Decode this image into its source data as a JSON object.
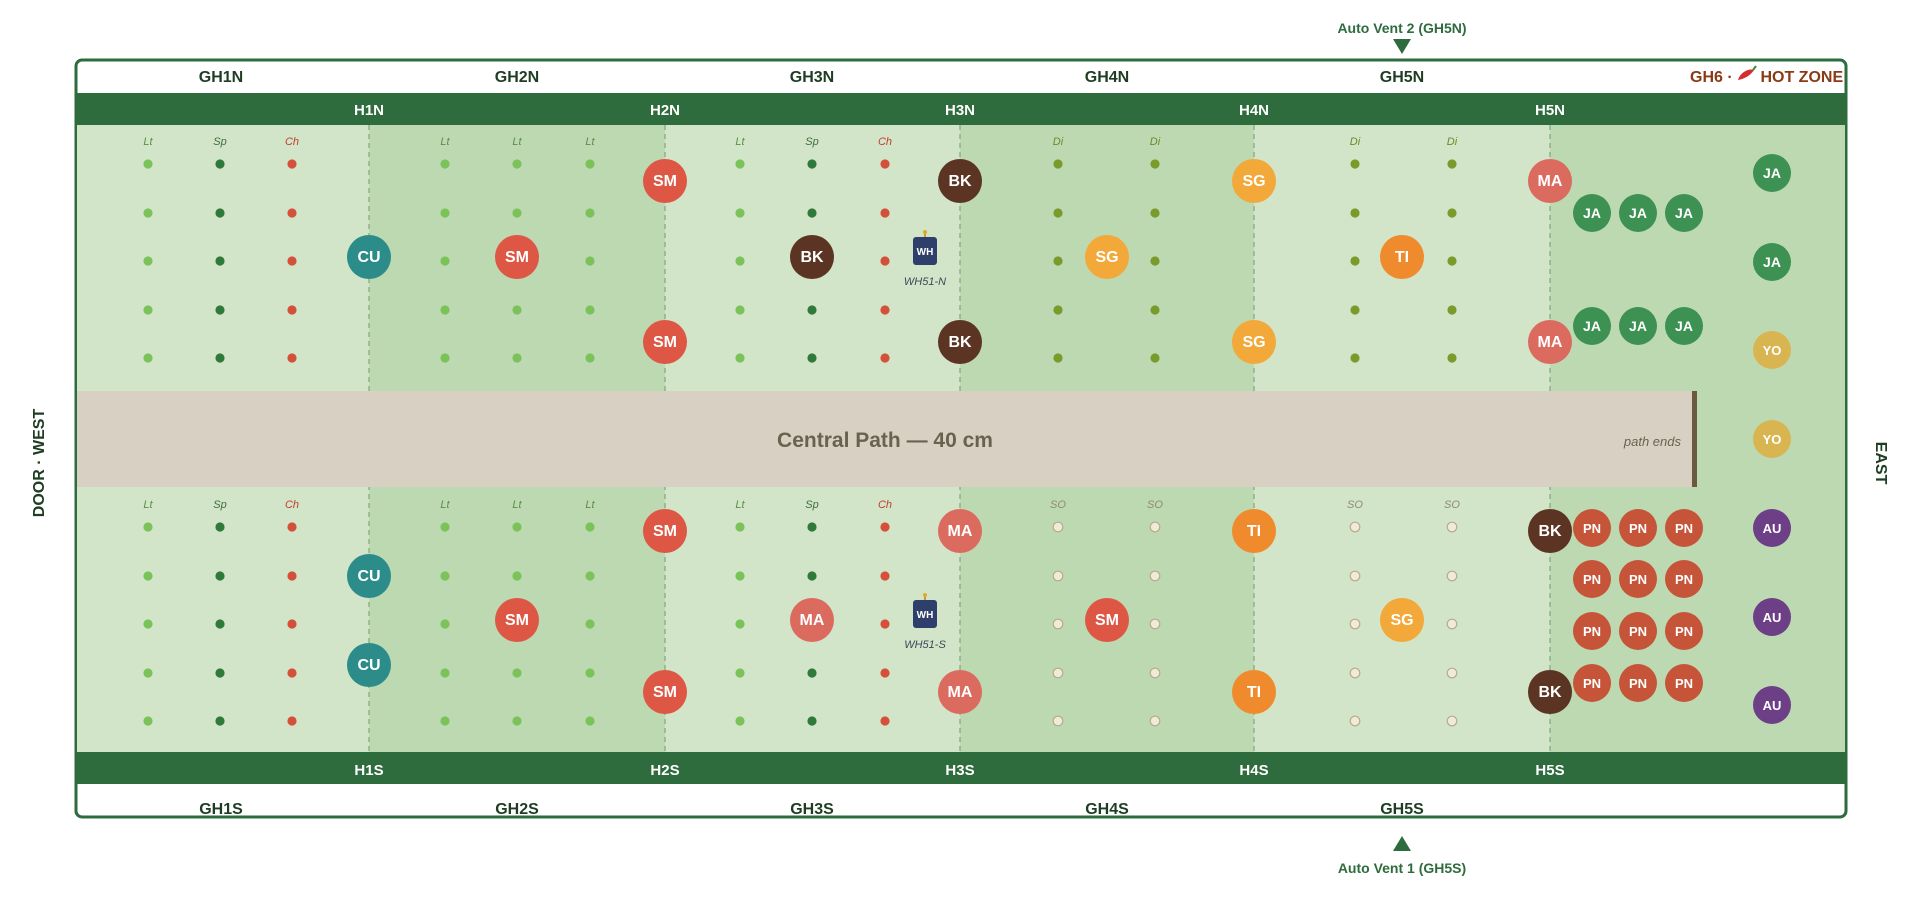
{
  "colors": {
    "frame_green": "#2e6b3d",
    "bed_light": "#d2e5c9",
    "bed_dark": "#bdd9b2",
    "path": "#d8d1c3",
    "path_text": "#6b6150",
    "hot_zone_text": "#8a3a14",
    "cabbage_dot": "#7cc25a",
    "spinach_dot": "#2f7a3b",
    "chard_dot": "#d4503a",
    "dill_dot": "#7a9a2c",
    "sweet_onion_dot": "#f0ead8",
    "SM": "#dd5744",
    "BK": "#5b3423",
    "SG": "#f3a83a",
    "TI": "#ef8b2c",
    "MA": "#dc6b5f",
    "CU": "#2c8c89",
    "JA": "#3d9152",
    "PN": "#c65439",
    "YO": "#d9b552",
    "AU": "#6c3f86",
    "WH": "#2e3f6b"
  },
  "vents": {
    "north_label": "Auto Vent 2 (GH5N)",
    "south_label": "Auto Vent 1 (GH5S)"
  },
  "side_labels": {
    "west": "DOOR · WEST",
    "east": "EAST"
  },
  "sections_north": [
    "GH1N",
    "GH2N",
    "GH3N",
    "GH4N",
    "GH5N"
  ],
  "sections_south": [
    "GH1S",
    "GH2S",
    "GH3S",
    "GH4S",
    "GH5S"
  ],
  "hot_zone": {
    "prefix": "GH6 · ",
    "suffix": " HOT ZONE"
  },
  "hoops_north": [
    "H1N",
    "H2N",
    "H3N",
    "H4N",
    "H5N"
  ],
  "hoops_south": [
    "H1S",
    "H2S",
    "H3S",
    "H4S",
    "H5S"
  ],
  "path": {
    "label": "Central Path — 40 cm",
    "end_label": "path ends"
  },
  "beds": {
    "north": {
      "row_labels": [
        {
          "section": 1,
          "labels": [
            "Lt",
            "Sp",
            "Ch"
          ]
        },
        {
          "section": 2,
          "labels": [
            "Lt",
            "Lt",
            "Lt"
          ]
        },
        {
          "section": 3,
          "labels": [
            "Lt",
            "Sp",
            "Ch"
          ]
        },
        {
          "section": 4,
          "labels": [
            "Di",
            "Di"
          ]
        },
        {
          "section": 5,
          "labels": [
            "Di",
            "Di"
          ]
        }
      ]
    },
    "south": {
      "row_labels": [
        {
          "section": 1,
          "labels": [
            "Lt",
            "Sp",
            "Ch"
          ]
        },
        {
          "section": 2,
          "labels": [
            "Lt",
            "Lt",
            "Lt"
          ]
        },
        {
          "section": 3,
          "labels": [
            "Lt",
            "Sp",
            "Ch"
          ]
        },
        {
          "section": 4,
          "labels": [
            "SO",
            "SO"
          ]
        },
        {
          "section": 5,
          "labels": [
            "SO",
            "SO"
          ]
        }
      ]
    }
  },
  "sensors": [
    {
      "code": "WH",
      "label": "WH51-N"
    },
    {
      "code": "WH",
      "label": "WH51-S"
    }
  ],
  "plants": {
    "north": [
      "CU",
      "SM",
      "SM",
      "SM",
      "BK",
      "BK",
      "BK",
      "SG",
      "SG",
      "SG",
      "TI",
      "MA",
      "MA",
      "JA",
      "JA",
      "JA",
      "JA",
      "JA",
      "JA"
    ],
    "south": [
      "CU",
      "CU",
      "SM",
      "SM",
      "SM",
      "MA",
      "MA",
      "MA",
      "SM",
      "TI",
      "TI",
      "SG",
      "BK",
      "BK",
      "PN",
      "PN",
      "PN",
      "PN",
      "PN",
      "PN",
      "PN",
      "PN",
      "PN",
      "PN",
      "PN",
      "PN"
    ],
    "gh6_column": [
      "JA",
      "JA",
      "YO",
      "YO",
      "AU",
      "AU",
      "AU"
    ]
  }
}
